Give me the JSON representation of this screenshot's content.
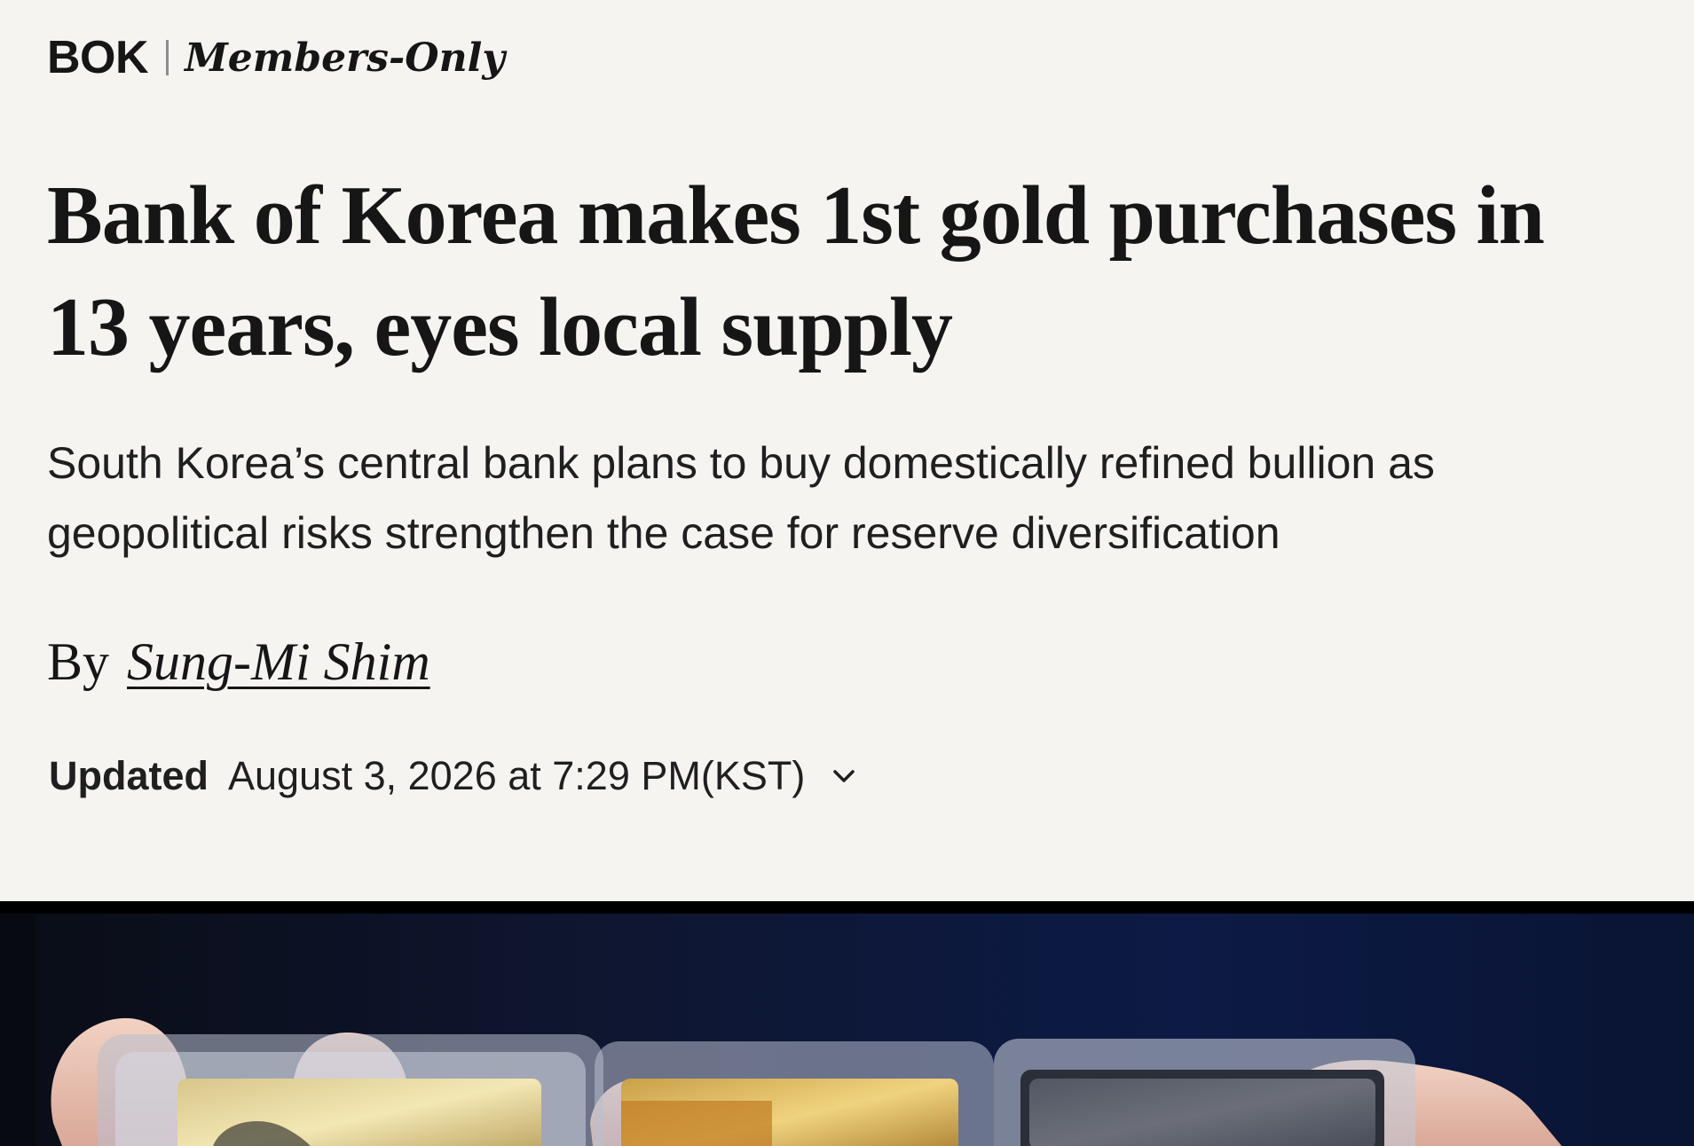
{
  "kicker": {
    "section": "BOK",
    "tag": "Members-Only"
  },
  "article": {
    "headline": "Bank of Korea makes 1st gold purchases in 13 years, eyes local supply",
    "dek": "South Korea’s central bank plans to buy domestically refined bullion as geopolitical risks strengthen the case for reserve diversification"
  },
  "byline": {
    "prefix": "By",
    "author": "Sung-Mi Shim"
  },
  "timestamp": {
    "label": "Updated",
    "value": "August 3, 2026 at 7:29 PM(KST)",
    "toggle_icon": "chevron-down-icon"
  },
  "photo": {
    "subject": "hands-holding-gold-bars-photo"
  },
  "colors": {
    "background": "#f5f4f1",
    "text": "#161616",
    "divider": "#8d8d8d"
  }
}
